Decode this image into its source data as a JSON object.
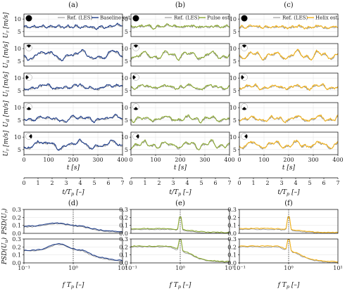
{
  "figure": {
    "colors": {
      "ref": "#8c8c8c",
      "baseline": "#1f3e8a",
      "pulse": "#8aa832",
      "helix": "#f2b21a",
      "grid": "#e2e2e2",
      "vline": "#333333"
    }
  },
  "chart_data": {
    "type": "line",
    "panel_letters": [
      "(a)",
      "(b)",
      "(c)",
      "(d)",
      "(e)",
      "(f)"
    ],
    "legend": {
      "ref": "Ref. (LES)",
      "baseline": "Baseline est.",
      "pulse": "Pulse est.",
      "helix": "Helix est."
    },
    "top_block": {
      "ylabels": [
        "U_r [m/s]",
        "U_u [m/s]",
        "U_l [m/s]",
        "U_d [m/s]",
        "U_r [m/s]"
      ],
      "ylabel_main": [
        "U",
        "U",
        "U",
        "U",
        "U"
      ],
      "ylabel_sub": [
        "r",
        "u",
        "l",
        "d",
        "r"
      ],
      "ylabel_unit": "[m/s]",
      "yticks": [
        5,
        10
      ],
      "ylim": [
        3,
        12
      ],
      "xticks": [
        0,
        100,
        200,
        300,
        400
      ],
      "xlim": [
        0,
        400
      ],
      "xlabel": "t [s]",
      "xlabel_main": "t",
      "xlabel_unit": "[s]",
      "second_axis_ticks": [
        0,
        1,
        2,
        3,
        4,
        5,
        6,
        7
      ],
      "second_axis_label": "t/T_p [–]",
      "second_axis_label_main": "t/T",
      "second_axis_label_sub": "p",
      "second_axis_label_unit": "[–]",
      "reference_x": [
        0,
        20,
        40,
        60,
        80,
        100,
        120,
        140,
        160,
        180,
        200,
        220,
        240,
        260,
        280,
        300,
        320,
        340,
        360,
        380,
        400
      ],
      "series_example": [
        {
          "name": "Ref. (LES)",
          "values": [
            6.8,
            6.6,
            7.0,
            6.7,
            6.9,
            6.6,
            6.8,
            7.1,
            6.7,
            6.9,
            6.6,
            6.8,
            7.0,
            6.7,
            6.9,
            6.6,
            6.8,
            7.0,
            6.7,
            6.9,
            6.8
          ]
        },
        {
          "name": "Baseline est.",
          "values": [
            7.0,
            6.5,
            7.2,
            6.6,
            7.1,
            6.5,
            6.9,
            7.3,
            6.6,
            7.0,
            6.5,
            6.9,
            7.2,
            6.6,
            7.1,
            6.5,
            6.9,
            7.2,
            6.6,
            7.0,
            6.9
          ]
        }
      ]
    },
    "bottom_block": {
      "ylabels": [
        "PSD(U_r)",
        "PSD(U_u)"
      ],
      "ylabel_main": "PSD(U",
      "ylabel_sub": [
        "r",
        "u"
      ],
      "yticks": [
        0.0,
        0.1,
        0.2,
        0.3
      ],
      "ylim": [
        0,
        0.3
      ],
      "xlabel": "f T_p [–]",
      "xlabel_main": "f T",
      "xlabel_sub": "p",
      "xlabel_unit": "[–]",
      "xscale": "log",
      "xlim": [
        0.1,
        10
      ],
      "xticks": [
        "10⁻¹",
        "10⁰",
        "10¹"
      ],
      "vertical_marker_x": 1
    }
  }
}
